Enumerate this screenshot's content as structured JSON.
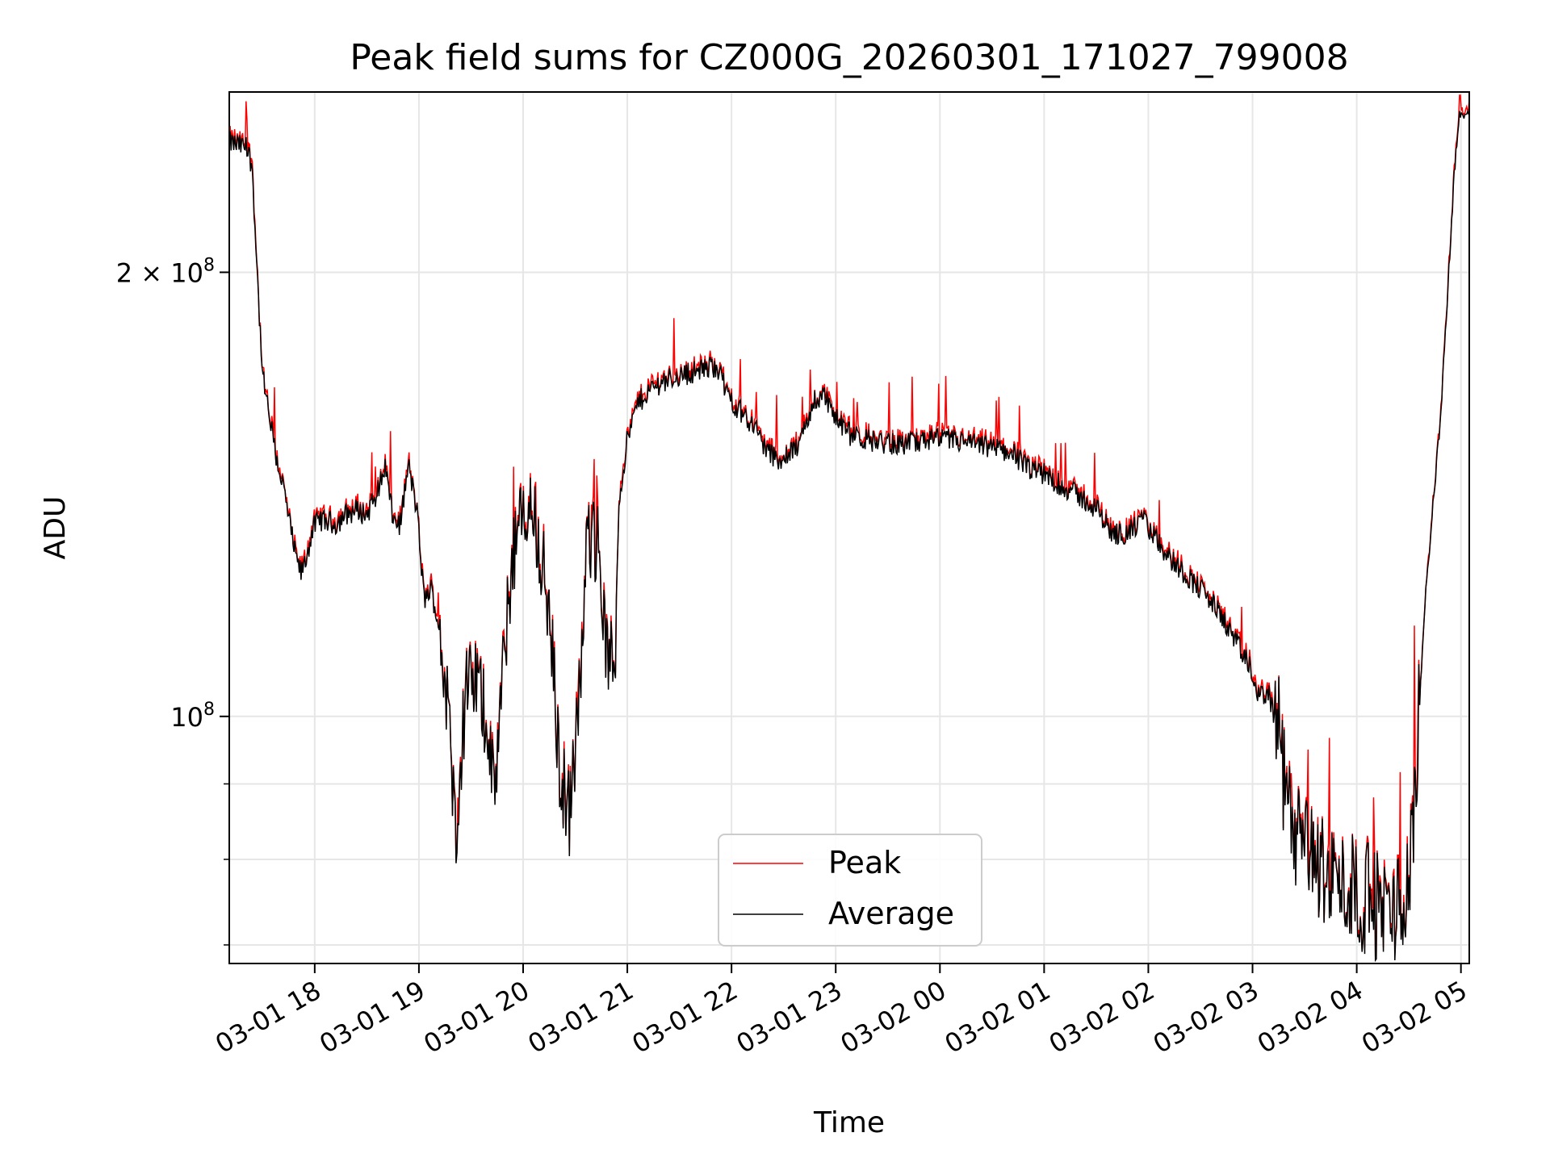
{
  "chart_data": {
    "type": "line",
    "title": "Peak field sums for CZ000G_20260301_171027_799008",
    "xlabel": "Time",
    "ylabel": "ADU",
    "y_scale": "log",
    "xlim_hours": [
      17.18,
      29.08
    ],
    "ylim": [
      68000000,
      265000000
    ],
    "x_tick_hours": [
      18,
      19,
      20,
      21,
      22,
      23,
      24,
      25,
      26,
      27,
      28,
      29
    ],
    "x_tick_labels": [
      "03-01 18",
      "03-01 19",
      "03-01 20",
      "03-01 21",
      "03-01 22",
      "03-01 23",
      "03-02 00",
      "03-02 01",
      "03-02 02",
      "03-02 03",
      "03-02 04",
      "03-02 05"
    ],
    "y_major_ticks": [
      {
        "value": 100000000,
        "base": "10",
        "exp": "8"
      },
      {
        "value": 200000000,
        "base": "2 × 10",
        "exp": "8"
      }
    ],
    "y_minor_ticks": [
      70000000,
      80000000,
      90000000
    ],
    "grid": true,
    "legend_position": "lower-center",
    "series": [
      {
        "name": "Peak",
        "color": "#ff0000"
      },
      {
        "name": "Average",
        "color": "#000000"
      }
    ],
    "average_keypoints": [
      [
        17.18,
        245000000.0
      ],
      [
        17.25,
        244000000.0
      ],
      [
        17.35,
        243000000.0
      ],
      [
        17.4,
        236000000.0
      ],
      [
        17.46,
        192000000.0
      ],
      [
        17.5,
        170000000.0
      ],
      [
        17.58,
        157000000.0
      ],
      [
        17.63,
        150000000.0
      ],
      [
        17.7,
        143000000.0
      ],
      [
        17.76,
        135000000.0
      ],
      [
        17.82,
        128000000.0
      ],
      [
        17.87,
        125000000.0
      ],
      [
        17.92,
        128000000.0
      ],
      [
        17.98,
        134000000.0
      ],
      [
        18.05,
        136000000.0
      ],
      [
        18.2,
        135000000.0
      ],
      [
        18.3,
        137000000.0
      ],
      [
        18.4,
        138000000.0
      ],
      [
        18.5,
        137000000.0
      ],
      [
        18.6,
        142000000.0
      ],
      [
        18.68,
        148000000.0
      ],
      [
        18.75,
        136000000.0
      ],
      [
        18.82,
        135000000.0
      ],
      [
        18.9,
        148000000.0
      ],
      [
        18.98,
        138000000.0
      ],
      [
        19.05,
        120000000.0
      ],
      [
        19.12,
        122000000.0
      ],
      [
        19.2,
        114000000.0
      ],
      [
        19.27,
        103000000.0
      ],
      [
        19.35,
        84000000.0
      ],
      [
        19.45,
        104000000.0
      ],
      [
        19.55,
        106000000.0
      ],
      [
        19.65,
        100000000.0
      ],
      [
        19.72,
        88000000.0
      ],
      [
        19.8,
        105000000.0
      ],
      [
        19.9,
        130000000.0
      ],
      [
        20.0,
        136000000.0
      ],
      [
        20.1,
        138000000.0
      ],
      [
        20.2,
        125000000.0
      ],
      [
        20.28,
        110000000.0
      ],
      [
        20.35,
        92000000.0
      ],
      [
        20.45,
        86000000.0
      ],
      [
        20.55,
        105000000.0
      ],
      [
        20.62,
        133000000.0
      ],
      [
        20.72,
        132000000.0
      ],
      [
        20.8,
        110000000.0
      ],
      [
        20.88,
        108000000.0
      ],
      [
        20.92,
        140000000.0
      ],
      [
        21.0,
        154000000.0
      ],
      [
        21.1,
        163000000.0
      ],
      [
        21.2,
        166000000.0
      ],
      [
        21.35,
        169000000.0
      ],
      [
        21.5,
        170000000.0
      ],
      [
        21.6,
        171000000.0
      ],
      [
        21.75,
        172000000.0
      ],
      [
        21.86,
        173000000.0
      ],
      [
        21.95,
        166000000.0
      ],
      [
        22.05,
        162000000.0
      ],
      [
        22.2,
        158000000.0
      ],
      [
        22.35,
        151000000.0
      ],
      [
        22.5,
        149000000.0
      ],
      [
        22.65,
        153000000.0
      ],
      [
        22.8,
        164000000.0
      ],
      [
        22.9,
        165000000.0
      ],
      [
        23.0,
        159000000.0
      ],
      [
        23.15,
        155000000.0
      ],
      [
        23.3,
        154000000.0
      ],
      [
        23.5,
        153000000.0
      ],
      [
        23.7,
        153000000.0
      ],
      [
        23.9,
        154000000.0
      ],
      [
        24.1,
        154000000.0
      ],
      [
        24.3,
        153000000.0
      ],
      [
        24.5,
        152000000.0
      ],
      [
        24.7,
        151000000.0
      ],
      [
        24.85,
        147000000.0
      ],
      [
        25.0,
        146000000.0
      ],
      [
        25.2,
        143000000.0
      ],
      [
        25.4,
        140000000.0
      ],
      [
        25.55,
        137000000.0
      ],
      [
        25.65,
        133000000.0
      ],
      [
        25.8,
        133000000.0
      ],
      [
        25.95,
        136000000.0
      ],
      [
        26.1,
        131000000.0
      ],
      [
        26.25,
        127000000.0
      ],
      [
        26.4,
        124000000.0
      ],
      [
        26.55,
        121000000.0
      ],
      [
        26.7,
        117000000.0
      ],
      [
        26.85,
        112000000.0
      ],
      [
        27.0,
        107000000.0
      ],
      [
        27.05,
        103000000.0
      ],
      [
        27.15,
        104000000.0
      ],
      [
        27.25,
        98000000.0
      ],
      [
        27.32,
        88000000.0
      ],
      [
        27.45,
        82000000.0
      ],
      [
        27.6,
        80000000.0
      ],
      [
        27.75,
        78000000.0
      ],
      [
        27.9,
        77000000.0
      ],
      [
        28.05,
        76000000.0
      ],
      [
        28.2,
        74500000.0
      ],
      [
        28.3,
        74000000.0
      ],
      [
        28.4,
        74000000.0
      ],
      [
        28.5,
        78000000.0
      ],
      [
        28.58,
        95000000.0
      ],
      [
        28.65,
        118000000.0
      ],
      [
        28.72,
        136000000.0
      ],
      [
        28.8,
        158000000.0
      ],
      [
        28.87,
        192000000.0
      ],
      [
        28.93,
        230000000.0
      ],
      [
        28.98,
        255000000.0
      ],
      [
        29.08,
        257000000.0
      ]
    ]
  }
}
